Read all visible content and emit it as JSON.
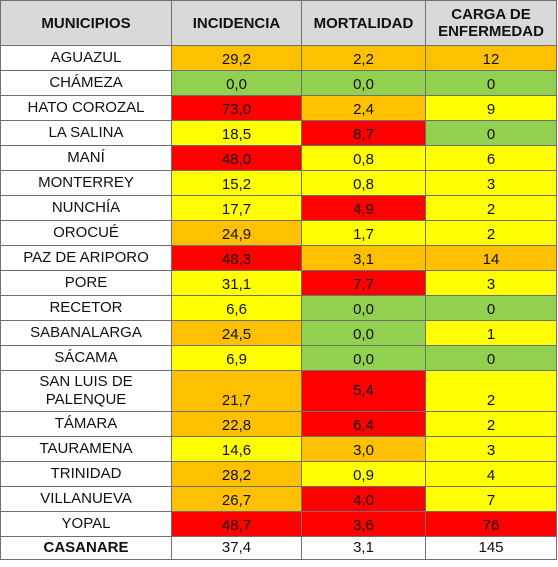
{
  "headers": [
    "MUNICIPIOS",
    "INCIDENCIA",
    "MORTALIDAD",
    "CARGA DE ENFERMEDAD"
  ],
  "colors": {
    "red": "#ff0000",
    "orange": "#ffc000",
    "yellow": "#ffff00",
    "green": "#92d050",
    "header": "#d9d9d9"
  },
  "rows": [
    {
      "municipio": "AGUAZUL",
      "incidencia": "29,2",
      "mortalidad": "2,2",
      "carga": "12",
      "c_inc": "orange",
      "c_mor": "orange",
      "c_car": "orange"
    },
    {
      "municipio": "CHÁMEZA",
      "incidencia": "0,0",
      "mortalidad": "0,0",
      "carga": "0",
      "c_inc": "green",
      "c_mor": "green",
      "c_car": "green"
    },
    {
      "municipio": "HATO COROZAL",
      "incidencia": "73,0",
      "mortalidad": "2,4",
      "carga": "9",
      "c_inc": "red",
      "c_mor": "orange",
      "c_car": "yellow"
    },
    {
      "municipio": "LA SALINA",
      "incidencia": "18,5",
      "mortalidad": "8,7",
      "carga": "0",
      "c_inc": "yellow",
      "c_mor": "red",
      "c_car": "green"
    },
    {
      "municipio": "MANÍ",
      "incidencia": "48,0",
      "mortalidad": "0,8",
      "carga": "6",
      "c_inc": "red",
      "c_mor": "yellow",
      "c_car": "yellow"
    },
    {
      "municipio": "MONTERREY",
      "incidencia": "15,2",
      "mortalidad": "0,8",
      "carga": "3",
      "c_inc": "yellow",
      "c_mor": "yellow",
      "c_car": "yellow"
    },
    {
      "municipio": "NUNCHÍA",
      "incidencia": "17,7",
      "mortalidad": "4,9",
      "carga": "2",
      "c_inc": "yellow",
      "c_mor": "red",
      "c_car": "yellow"
    },
    {
      "municipio": "OROCUÉ",
      "incidencia": "24,9",
      "mortalidad": "1,7",
      "carga": "2",
      "c_inc": "orange",
      "c_mor": "yellow",
      "c_car": "yellow"
    },
    {
      "municipio": "PAZ DE ARIPORO",
      "incidencia": "48,3",
      "mortalidad": "3,1",
      "carga": "14",
      "c_inc": "red",
      "c_mor": "orange",
      "c_car": "orange"
    },
    {
      "municipio": "PORE",
      "incidencia": "31,1",
      "mortalidad": "7,7",
      "carga": "3",
      "c_inc": "yellow",
      "c_mor": "red",
      "c_car": "yellow"
    },
    {
      "municipio": "RECETOR",
      "incidencia": "6,6",
      "mortalidad": "0,0",
      "carga": "0",
      "c_inc": "yellow",
      "c_mor": "green",
      "c_car": "green"
    },
    {
      "municipio": "SABANALARGA",
      "incidencia": "24,5",
      "mortalidad": "0,0",
      "carga": "1",
      "c_inc": "orange",
      "c_mor": "green",
      "c_car": "yellow"
    },
    {
      "municipio": "SÁCAMA",
      "incidencia": "6,9",
      "mortalidad": "0,0",
      "carga": "0",
      "c_inc": "yellow",
      "c_mor": "green",
      "c_car": "green"
    },
    {
      "municipio": "SAN LUIS DE PALENQUE",
      "incidencia": "21,7",
      "mortalidad": "5,4",
      "carga": "2",
      "c_inc": "orange",
      "c_mor": "red",
      "c_car": "yellow",
      "tall": true
    },
    {
      "municipio": "TÁMARA",
      "incidencia": "22,8",
      "mortalidad": "6,4",
      "carga": "2",
      "c_inc": "orange",
      "c_mor": "red",
      "c_car": "yellow"
    },
    {
      "municipio": "TAURAMENA",
      "incidencia": "14,6",
      "mortalidad": "3,0",
      "carga": "3",
      "c_inc": "yellow",
      "c_mor": "orange",
      "c_car": "yellow"
    },
    {
      "municipio": "TRINIDAD",
      "incidencia": "28,2",
      "mortalidad": "0,9",
      "carga": "4",
      "c_inc": "orange",
      "c_mor": "yellow",
      "c_car": "yellow"
    },
    {
      "municipio": "VILLANUEVA",
      "incidencia": "26,7",
      "mortalidad": "4,0",
      "carga": "7",
      "c_inc": "orange",
      "c_mor": "red",
      "c_car": "yellow"
    },
    {
      "municipio": "YOPAL",
      "incidencia": "48,7",
      "mortalidad": "3,6",
      "carga": "76",
      "c_inc": "red",
      "c_mor": "red",
      "c_car": "red"
    }
  ],
  "total": {
    "municipio": "CASANARE",
    "incidencia": "37,4",
    "mortalidad": "3,1",
    "carga": "145"
  }
}
